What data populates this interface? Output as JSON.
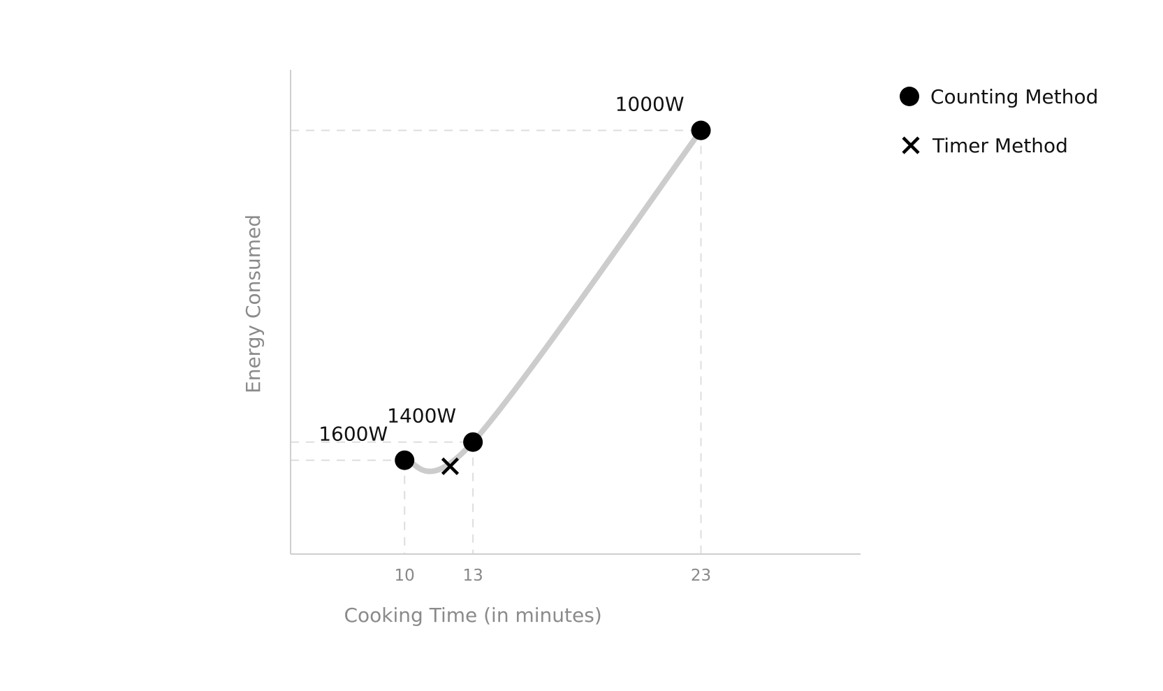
{
  "chart_data": {
    "type": "scatter",
    "title": "",
    "xlabel": "Cooking Time (in minutes)",
    "ylabel": "Energy Consumed",
    "x_ticks": [
      10,
      13,
      23
    ],
    "grid": false,
    "legend_position": "top-right",
    "series": [
      {
        "name": "Counting Method",
        "marker": "circle",
        "color": "#000000",
        "points": [
          {
            "x": 10,
            "y": 15.5,
            "label": "1600W"
          },
          {
            "x": 13,
            "y": 18.5,
            "label": "1400W"
          },
          {
            "x": 23,
            "y": 70,
            "label": "1000W"
          }
        ]
      },
      {
        "name": "Timer Method",
        "marker": "x",
        "color": "#000000",
        "points": [
          {
            "x": 12,
            "y": 14.5
          }
        ]
      }
    ],
    "curve_color": "#cccccc",
    "guide_color": "#dedede"
  }
}
